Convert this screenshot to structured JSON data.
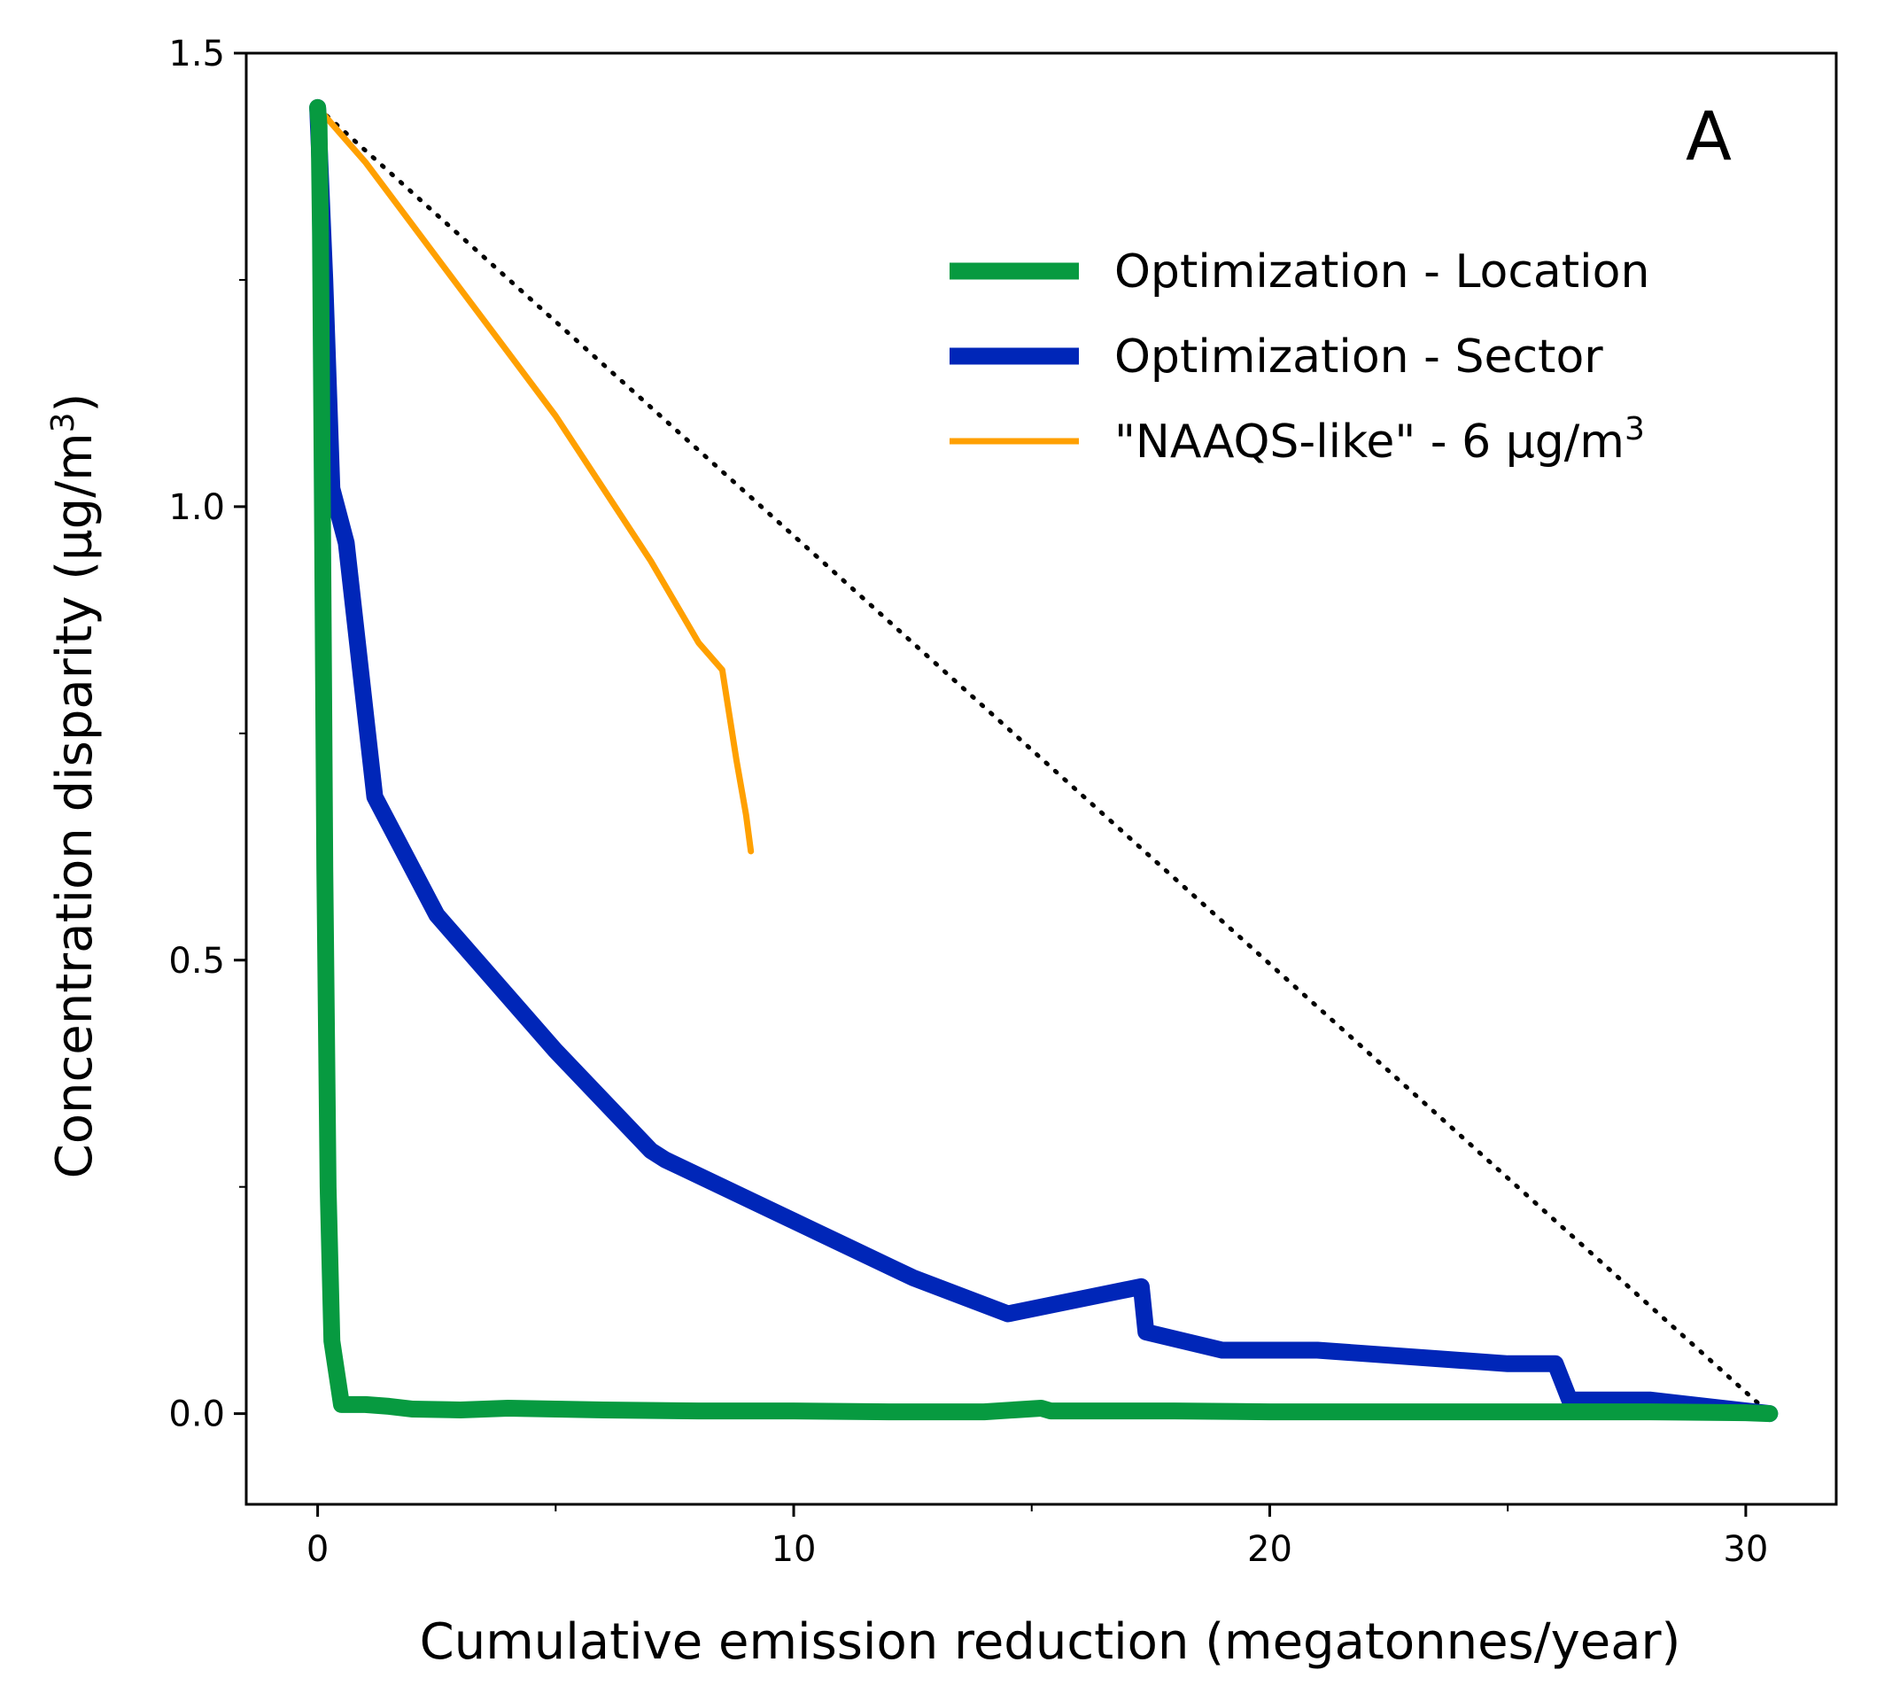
{
  "chart_data": {
    "type": "line",
    "panel_label": "A",
    "xlabel": "Cumulative emission reduction (megatonnes/year)",
    "ylabel": "Concentration disparity (µg/m",
    "ylabel_sup": "3",
    "ylabel_end": ")",
    "xlim": [
      -1.5,
      31.9
    ],
    "ylim": [
      -0.1,
      1.5
    ],
    "xticks": [
      0,
      10,
      20,
      30
    ],
    "xtick_labels": [
      "0",
      "10",
      "20",
      "30"
    ],
    "xticks_minor": [
      5,
      15,
      25
    ],
    "yticks": [
      0.0,
      0.5,
      1.0,
      1.5
    ],
    "ytick_labels": [
      "0.0",
      "0.5",
      "1.0",
      "1.5"
    ],
    "yticks_minor": [
      0.25,
      0.75,
      1.25
    ],
    "grid": false,
    "legend_position": "top-right",
    "series": [
      {
        "name": "Optimization - Location",
        "color": "#079a40",
        "line_width": "thick",
        "x": [
          0,
          0.03,
          0.06,
          0.1,
          0.15,
          0.22,
          0.3,
          0.5,
          1,
          1.5,
          2,
          3,
          4,
          5,
          6,
          8,
          10,
          12,
          14,
          15.2,
          15.4,
          16,
          18,
          20,
          22,
          24,
          26,
          28,
          30,
          30.5
        ],
        "y": [
          1.44,
          1.42,
          1.3,
          1.0,
          0.6,
          0.25,
          0.08,
          0.01,
          0.01,
          0.008,
          0.005,
          0.004,
          0.006,
          0.005,
          0.004,
          0.003,
          0.003,
          0.002,
          0.002,
          0.006,
          0.003,
          0.003,
          0.003,
          0.002,
          0.002,
          0.002,
          0.002,
          0.002,
          0.001,
          0.0
        ]
      },
      {
        "name": "Optimization - Sector",
        "color": "#0026b8",
        "line_width": "thick",
        "x": [
          0,
          0.15,
          0.3,
          0.6,
          1.2,
          2.5,
          3,
          5,
          7,
          7.3,
          8.5,
          10.5,
          12.5,
          14.5,
          17.3,
          17.4,
          19,
          21,
          25,
          26,
          26.3,
          28,
          30.5
        ],
        "y": [
          1.44,
          1.25,
          1.02,
          0.96,
          0.68,
          0.55,
          0.52,
          0.4,
          0.29,
          0.28,
          0.25,
          0.2,
          0.15,
          0.11,
          0.14,
          0.09,
          0.07,
          0.07,
          0.055,
          0.055,
          0.015,
          0.015,
          0.0
        ]
      },
      {
        "name": "\"NAAQS-like\" - 6 µg/m",
        "name_sup": "3",
        "color": "#ffa000",
        "line_width": "thin",
        "x": [
          0,
          1,
          2,
          3,
          4,
          5,
          6,
          7,
          8,
          8.5,
          8.8,
          9.0,
          9.1
        ],
        "y": [
          1.44,
          1.38,
          1.31,
          1.24,
          1.17,
          1.1,
          1.02,
          0.94,
          0.85,
          0.82,
          0.72,
          0.66,
          0.62
        ]
      },
      {
        "name": "",
        "color": "#000000",
        "line_style": "dotted",
        "x": [
          0,
          30.5
        ],
        "y": [
          1.44,
          0.0
        ]
      }
    ]
  }
}
